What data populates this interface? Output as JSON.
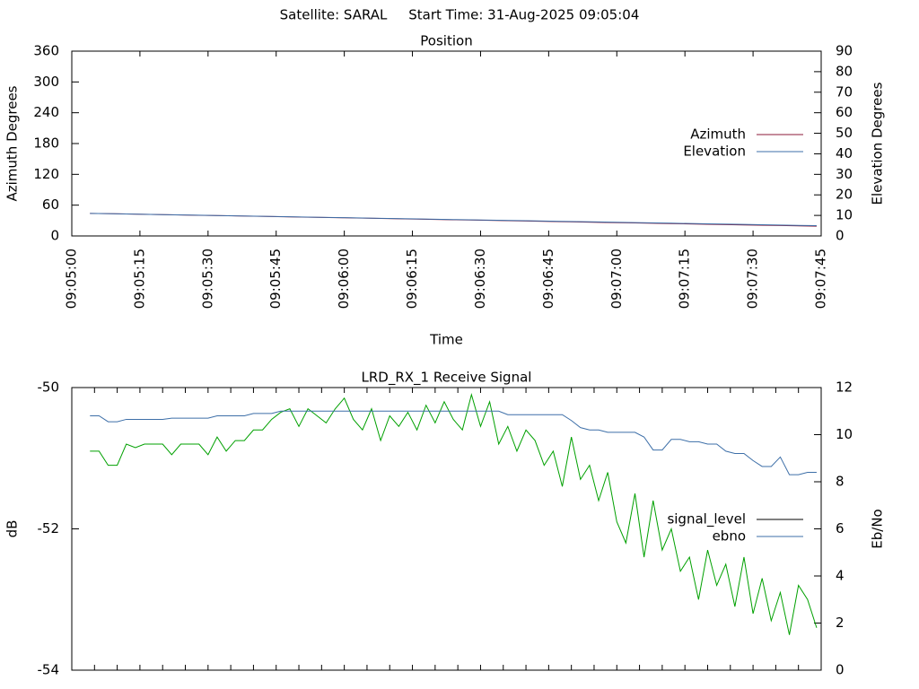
{
  "title": "Satellite: SARAL     Start Time: 31-Aug-2025 09:05:04",
  "chart_data": [
    {
      "type": "line",
      "title": "Position",
      "x_label": "Time",
      "y_label": "Azimuth Degrees",
      "y2_label": "Elevation Degrees",
      "x": [
        "09:05:04",
        "09:05:12",
        "09:05:20",
        "09:05:28",
        "09:05:36",
        "09:05:44",
        "09:05:52",
        "09:06:00",
        "09:06:08",
        "09:06:16",
        "09:06:24",
        "09:06:32",
        "09:06:40",
        "09:06:48",
        "09:06:56",
        "09:07:04",
        "09:07:12",
        "09:07:20",
        "09:07:28",
        "09:07:36",
        "09:07:44"
      ],
      "series": [
        {
          "name": "Azimuth",
          "color": "#8b1a3a",
          "values": [
            44,
            42.8,
            41.5,
            40.3,
            39,
            37.8,
            36.5,
            35.3,
            34,
            32.8,
            31.5,
            30.3,
            29,
            27.8,
            26.5,
            25.3,
            24,
            22.8,
            21.5,
            20.3,
            19
          ]
        },
        {
          "name": "Elevation",
          "color": "#3d6fa8",
          "axis": "y2",
          "values": [
            11,
            10.7,
            10.4,
            10.1,
            9.8,
            9.5,
            9.2,
            8.9,
            8.6,
            8.3,
            8,
            7.7,
            7.4,
            7.1,
            6.8,
            6.5,
            6.2,
            5.9,
            5.6,
            5.3,
            5.0
          ]
        }
      ],
      "xlim": [
        "09:05:00",
        "09:07:45"
      ],
      "xticks": [
        "09:05:00",
        "09:05:15",
        "09:05:30",
        "09:05:45",
        "09:06:00",
        "09:06:15",
        "09:06:30",
        "09:06:45",
        "09:07:00",
        "09:07:15",
        "09:07:30",
        "09:07:45"
      ],
      "xtick_labels": true,
      "ylim": [
        0,
        360
      ],
      "yticks": [
        0,
        60,
        120,
        180,
        240,
        300,
        360
      ],
      "y2lim": [
        0,
        90
      ],
      "y2ticks": [
        0,
        10,
        20,
        30,
        40,
        50,
        60,
        70,
        80,
        90
      ]
    },
    {
      "type": "line",
      "title": "LRD_RX_1 Receive Signal",
      "y_label": "dB",
      "y2_label": "Eb/No",
      "x": [
        "09:05:04",
        "09:05:06",
        "09:05:08",
        "09:05:10",
        "09:05:12",
        "09:05:14",
        "09:05:16",
        "09:05:18",
        "09:05:20",
        "09:05:22",
        "09:05:24",
        "09:05:26",
        "09:05:28",
        "09:05:30",
        "09:05:32",
        "09:05:34",
        "09:05:36",
        "09:05:38",
        "09:05:40",
        "09:05:42",
        "09:05:44",
        "09:05:46",
        "09:05:48",
        "09:05:50",
        "09:05:52",
        "09:05:54",
        "09:05:56",
        "09:05:58",
        "09:06:00",
        "09:06:02",
        "09:06:04",
        "09:06:06",
        "09:06:08",
        "09:06:10",
        "09:06:12",
        "09:06:14",
        "09:06:16",
        "09:06:18",
        "09:06:20",
        "09:06:22",
        "09:06:24",
        "09:06:26",
        "09:06:28",
        "09:06:30",
        "09:06:32",
        "09:06:34",
        "09:06:36",
        "09:06:38",
        "09:06:40",
        "09:06:42",
        "09:06:44",
        "09:06:46",
        "09:06:48",
        "09:06:50",
        "09:06:52",
        "09:06:54",
        "09:06:56",
        "09:06:58",
        "09:07:00",
        "09:07:02",
        "09:07:04",
        "09:07:06",
        "09:07:08",
        "09:07:10",
        "09:07:12",
        "09:07:14",
        "09:07:16",
        "09:07:18",
        "09:07:20",
        "09:07:22",
        "09:07:24",
        "09:07:26",
        "09:07:28",
        "09:07:30",
        "09:07:32",
        "09:07:34",
        "09:07:36",
        "09:07:38",
        "09:07:40",
        "09:07:42",
        "09:07:44"
      ],
      "series": [
        {
          "name": "signal_level",
          "color": "#00a000",
          "legend_color": "#000000",
          "values": [
            -50.9,
            -50.9,
            -51.1,
            -51.1,
            -50.8,
            -50.85,
            -50.8,
            -50.8,
            -50.8,
            -50.95,
            -50.8,
            -50.8,
            -50.8,
            -50.95,
            -50.7,
            -50.9,
            -50.75,
            -50.75,
            -50.6,
            -50.6,
            -50.45,
            -50.35,
            -50.3,
            -50.55,
            -50.3,
            -50.4,
            -50.5,
            -50.3,
            -50.15,
            -50.45,
            -50.6,
            -50.3,
            -50.75,
            -50.4,
            -50.55,
            -50.35,
            -50.6,
            -50.25,
            -50.5,
            -50.2,
            -50.45,
            -50.6,
            -50.1,
            -50.55,
            -50.2,
            -50.8,
            -50.55,
            -50.9,
            -50.6,
            -50.75,
            -51.1,
            -50.9,
            -51.4,
            -50.7,
            -51.3,
            -51.1,
            -51.6,
            -51.2,
            -51.9,
            -52.2,
            -51.5,
            -52.4,
            -51.6,
            -52.3,
            -52.0,
            -52.6,
            -52.4,
            -53.0,
            -52.3,
            -52.8,
            -52.5,
            -53.1,
            -52.4,
            -53.2,
            -52.7,
            -53.3,
            -52.9,
            -53.5,
            -52.8,
            -53.0,
            -53.4
          ]
        },
        {
          "name": "ebno",
          "color": "#3d6fa8",
          "axis": "y2",
          "values": [
            10.8,
            10.8,
            10.55,
            10.55,
            10.65,
            10.65,
            10.65,
            10.65,
            10.65,
            10.7,
            10.7,
            10.7,
            10.7,
            10.7,
            10.8,
            10.8,
            10.8,
            10.8,
            10.9,
            10.9,
            10.9,
            11,
            11,
            11,
            11,
            11,
            11,
            11,
            11,
            11,
            11,
            11,
            11,
            11,
            11,
            11,
            11,
            11,
            11,
            11,
            11,
            11,
            11,
            11,
            11,
            11,
            10.85,
            10.85,
            10.85,
            10.85,
            10.85,
            10.85,
            10.85,
            10.6,
            10.3,
            10.2,
            10.2,
            10.1,
            10.1,
            10.1,
            10.1,
            9.9,
            9.35,
            9.35,
            9.8,
            9.8,
            9.7,
            9.7,
            9.6,
            9.6,
            9.3,
            9.2,
            9.2,
            8.9,
            8.65,
            8.65,
            9.05,
            8.3,
            8.3,
            8.4,
            8.4
          ]
        }
      ],
      "xlim": [
        "09:05:00",
        "09:07:45"
      ],
      "xticks": [
        "09:05:00",
        "09:05:05",
        "09:05:10",
        "09:05:15",
        "09:05:20",
        "09:05:25",
        "09:05:30",
        "09:05:35",
        "09:05:40",
        "09:05:45",
        "09:05:50",
        "09:05:55",
        "09:06:00",
        "09:06:05",
        "09:06:10",
        "09:06:15",
        "09:06:20",
        "09:06:25",
        "09:06:30",
        "09:06:35",
        "09:06:40",
        "09:06:45",
        "09:06:50",
        "09:06:55",
        "09:07:00",
        "09:07:05",
        "09:07:10",
        "09:07:15",
        "09:07:20",
        "09:07:25",
        "09:07:30",
        "09:07:35",
        "09:07:40",
        "09:07:45"
      ],
      "xtick_labels": false,
      "ylim": [
        -54,
        -50
      ],
      "yticks": [
        -54,
        -52,
        -50
      ],
      "y2lim": [
        0,
        12
      ],
      "y2ticks": [
        0,
        2,
        4,
        6,
        8,
        10,
        12
      ]
    }
  ]
}
